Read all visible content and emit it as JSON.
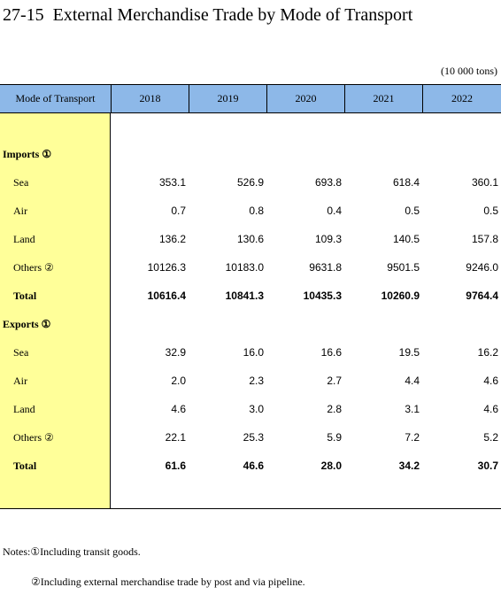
{
  "title": "27-15  External Merchandise Trade by Mode of Transport",
  "unit": "(10 000 tons)",
  "table": {
    "header": [
      "Mode of Transport",
      "2018",
      "2019",
      "2020",
      "2021",
      "2022"
    ],
    "sections": [
      {
        "label": "Imports ①",
        "rows": [
          {
            "label": "Sea",
            "values": [
              "353.1",
              "526.9",
              "693.8",
              "618.4",
              "360.1"
            ]
          },
          {
            "label": "Air",
            "values": [
              "0.7",
              "0.8",
              "0.4",
              "0.5",
              "0.5"
            ]
          },
          {
            "label": "Land",
            "values": [
              "136.2",
              "130.6",
              "109.3",
              "140.5",
              "157.8"
            ]
          },
          {
            "label": "Others ②",
            "values": [
              "10126.3",
              "10183.0",
              "9631.8",
              "9501.5",
              "9246.0"
            ]
          },
          {
            "label": "Total",
            "values": [
              "10616.4",
              "10841.3",
              "10435.3",
              "10260.9",
              "9764.4"
            ]
          }
        ]
      },
      {
        "label": "Exports ①",
        "rows": [
          {
            "label": "Sea",
            "values": [
              "32.9",
              "16.0",
              "16.6",
              "19.5",
              "16.2"
            ]
          },
          {
            "label": "Air",
            "values": [
              "2.0",
              "2.3",
              "2.7",
              "4.4",
              "4.6"
            ]
          },
          {
            "label": "Land",
            "values": [
              "4.6",
              "3.0",
              "2.8",
              "3.1",
              "4.6"
            ]
          },
          {
            "label": "Others ②",
            "values": [
              "22.1",
              "25.3",
              "5.9",
              "7.2",
              "5.2"
            ]
          },
          {
            "label": "Total",
            "values": [
              "61.6",
              "46.6",
              "28.0",
              "34.2",
              "30.7"
            ]
          }
        ]
      }
    ]
  },
  "notes": [
    "Notes:①Including transit goods.",
    "②Including external merchandise trade by post and via pipeline."
  ]
}
